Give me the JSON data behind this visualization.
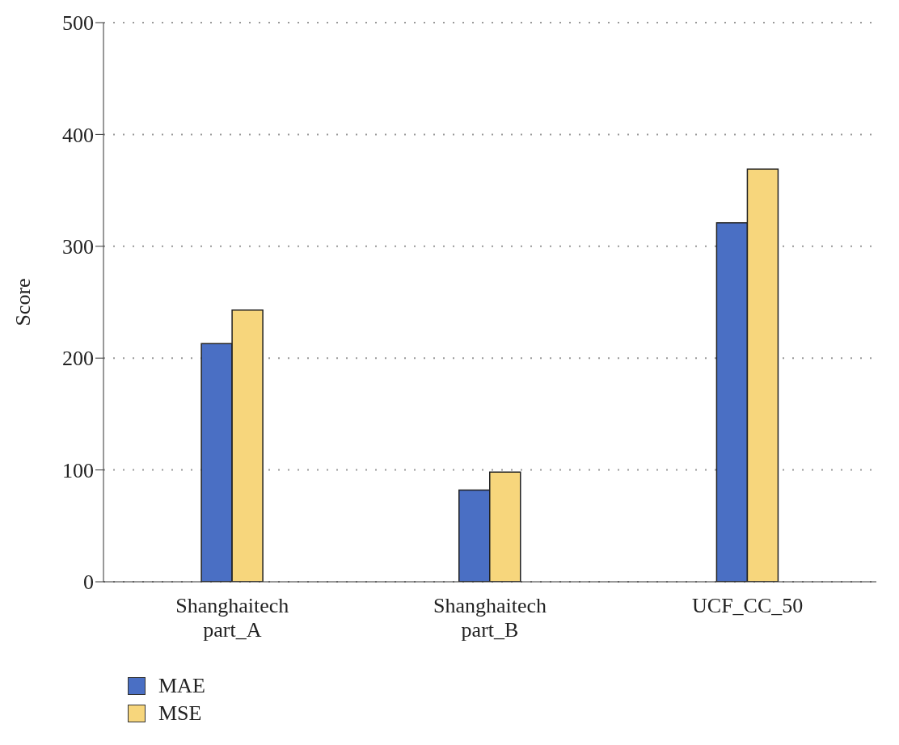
{
  "chart_data": {
    "type": "bar",
    "ylabel": "Score",
    "categories": [
      "Shanghaitech\npart_A",
      "Shanghaitech\npart_B",
      "UCF_CC_50"
    ],
    "series": [
      {
        "name": "MAE",
        "color": "#4a6fc4",
        "values": [
          213,
          82,
          321
        ]
      },
      {
        "name": "MSE",
        "color": "#f7d67c",
        "values": [
          243,
          98,
          369
        ]
      }
    ],
    "ylim": [
      0,
      500
    ],
    "yticks": [
      0,
      100,
      200,
      300,
      400,
      500
    ],
    "grid": "y",
    "legend": "bottom left"
  }
}
